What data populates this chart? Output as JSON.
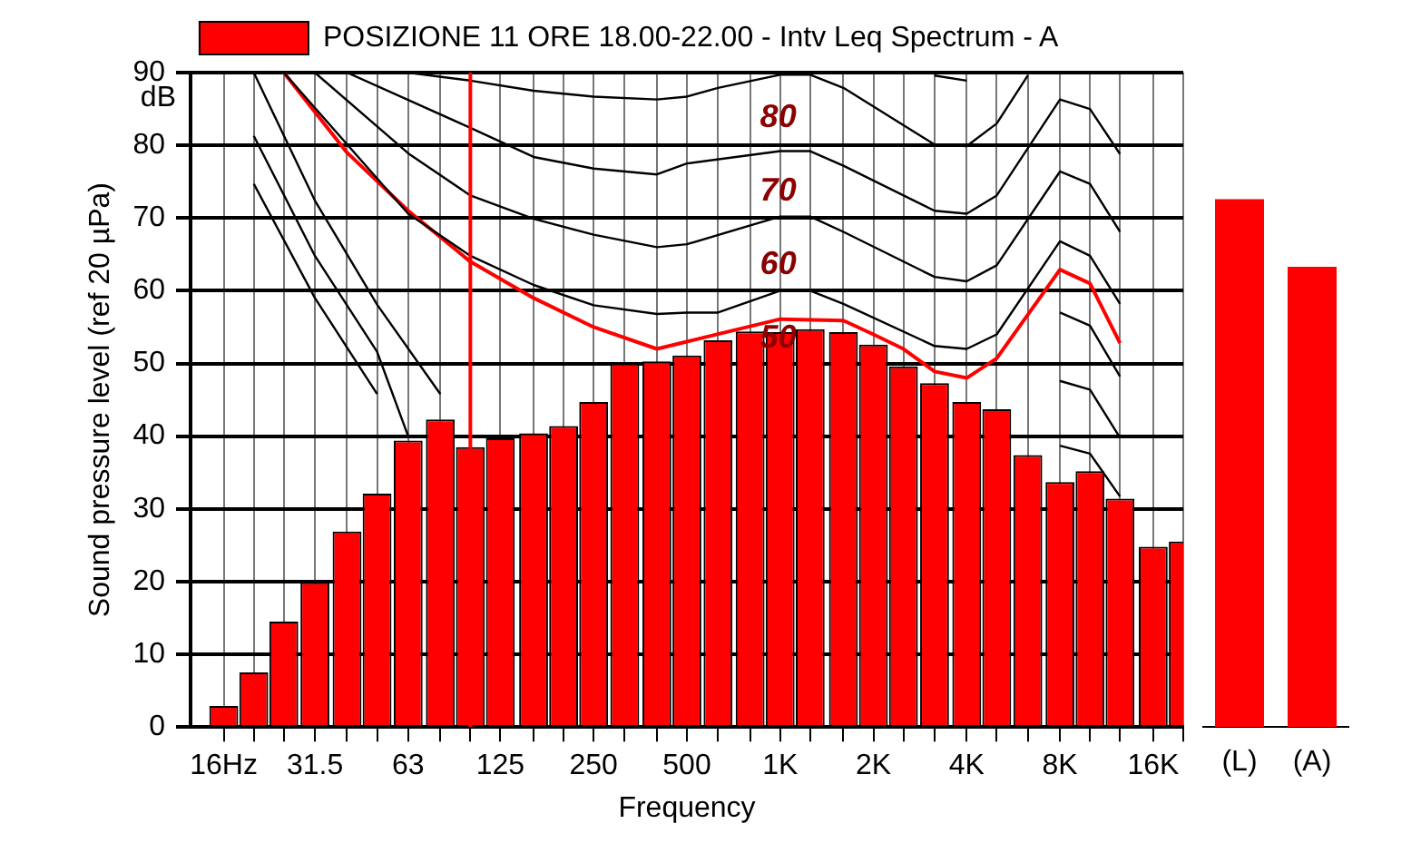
{
  "chart_data": [
    {
      "type": "bar",
      "xlabel": "Frequency",
      "ylabel": "Sound pressure level (ref 20 µPa)",
      "log": "x",
      "grid": true,
      "legend": "top",
      "marker": "none",
      "x": [
        16,
        20,
        25,
        31.5,
        40,
        50,
        63,
        80,
        100,
        125,
        160,
        200,
        250,
        315,
        400,
        500,
        630,
        800,
        1000,
        1250,
        1600,
        2000,
        2500,
        3150,
        4000,
        5000,
        6300,
        8000,
        10000,
        12500,
        16000,
        20000
      ],
      "xlim": [
        12.5,
        20000
      ],
      "xticks": [
        {
          "value": 16,
          "label": "16Hz"
        },
        {
          "value": 20,
          "label": null
        },
        {
          "value": 25,
          "label": null
        },
        {
          "value": 31.5,
          "label": "31.5"
        },
        {
          "value": 40,
          "label": null
        },
        {
          "value": 50,
          "label": null
        },
        {
          "value": 63,
          "label": "63"
        },
        {
          "value": 80,
          "label": null
        },
        {
          "value": 100,
          "label": null
        },
        {
          "value": 125,
          "label": "125"
        },
        {
          "value": 160,
          "label": null
        },
        {
          "value": 200,
          "label": null
        },
        {
          "value": 250,
          "label": "250"
        },
        {
          "value": 315,
          "label": null
        },
        {
          "value": 400,
          "label": null
        },
        {
          "value": 500,
          "label": "500"
        },
        {
          "value": 630,
          "label": null
        },
        {
          "value": 800,
          "label": null
        },
        {
          "value": 1000,
          "label": "1K"
        },
        {
          "value": 1250,
          "label": null
        },
        {
          "value": 1600,
          "label": null
        },
        {
          "value": 2000,
          "label": "2K"
        },
        {
          "value": 2500,
          "label": null
        },
        {
          "value": 3150,
          "label": null
        },
        {
          "value": 4000,
          "label": "4K"
        },
        {
          "value": 5000,
          "label": null
        },
        {
          "value": 6300,
          "label": null
        },
        {
          "value": 8000,
          "label": "8K"
        },
        {
          "value": 10000,
          "label": null
        },
        {
          "value": 12500,
          "label": null
        },
        {
          "value": 16000,
          "label": "16K"
        },
        {
          "value": 20000,
          "label": null
        }
      ],
      "ylim": [
        0,
        90
      ],
      "yticks": [
        0,
        10,
        20,
        30,
        40,
        50,
        60,
        70,
        80,
        90
      ],
      "ref_lines": [
        {
          "axis": "x",
          "value": 100,
          "color": "#ff0000"
        }
      ],
      "annotations": [
        "dB",
        "80",
        "70",
        "60",
        "50"
      ],
      "series": [
        {
          "name": "POSIZIONE 11 ORE 18.00-22.00 - Intv Leq Spectrum - A",
          "color": "#ff0000",
          "values": [
            2.9,
            7.5,
            14.5,
            19.9,
            26.9,
            32.1,
            39.4,
            42.3,
            38.5,
            39.7,
            40.4,
            41.4,
            44.7,
            50.0,
            50.3,
            51.1,
            53.2,
            54.4,
            54.3,
            54.7,
            54.3,
            52.6,
            49.6,
            47.3,
            44.7,
            43.7,
            37.4,
            33.7,
            35.2,
            31.4,
            24.8,
            25.5
          ]
        },
        {
          "type": "line",
          "color": "#000000",
          "x": [
            63,
            100,
            160,
            250,
            400,
            500,
            630,
            1000,
            1250,
            1600,
            3150,
            4000,
            5000,
            6300
          ],
          "values": [
            90,
            88.9,
            87.5,
            86.7,
            86.3,
            86.7,
            87.9,
            89.7,
            89.7,
            87.9,
            80.1,
            79.9,
            83.0,
            89.6
          ]
        },
        {
          "type": "line",
          "color": "#000000",
          "x": [
            3150,
            4000
          ],
          "values": [
            89.6,
            88.9
          ]
        },
        {
          "type": "line",
          "color": "#000000",
          "x": [
            40,
            100,
            160,
            250,
            400,
            500,
            1000,
            1250,
            1600,
            3150,
            4000,
            5000,
            8000,
            10000,
            12500
          ],
          "values": [
            90,
            82.4,
            78.4,
            76.8,
            76.0,
            77.5,
            79.2,
            79.2,
            77.2,
            71.0,
            70.6,
            73.1,
            86.3,
            85.0,
            78.8
          ]
        },
        {
          "type": "line",
          "color": "#000000",
          "x": [
            31.5,
            63,
            100,
            160,
            250,
            400,
            500,
            1000,
            1250,
            1600,
            3150,
            4000,
            5000,
            8000,
            10000,
            12500
          ],
          "values": [
            90,
            78.9,
            73.1,
            69.9,
            67.7,
            66.0,
            66.4,
            70.2,
            70.2,
            68.1,
            61.9,
            61.3,
            63.5,
            76.4,
            74.7,
            68.1
          ]
        },
        {
          "type": "line",
          "color": "#000000",
          "x": [
            25,
            63,
            100,
            160,
            250,
            400,
            500,
            630,
            1000,
            1250,
            1600,
            3150,
            4000,
            5000,
            8000,
            10000,
            12500
          ],
          "values": [
            90,
            70.6,
            64.8,
            60.8,
            58.0,
            56.8,
            57.0,
            57.0,
            60.0,
            60.0,
            58.2,
            52.4,
            52.0,
            54.0,
            66.8,
            64.8,
            58.2
          ]
        },
        {
          "type": "line",
          "color": "#000000",
          "x": [
            20,
            31.5,
            50,
            80,
            1000,
            8000,
            10000,
            12500
          ],
          "values": [
            90,
            72.4,
            58.1,
            45.8,
            null,
            57.0,
            55.2,
            48.2
          ]
        },
        {
          "type": "line",
          "color": "#000000",
          "x": [
            20,
            31.5,
            50,
            63,
            1000,
            8000,
            10000,
            12500
          ],
          "values": [
            81.3,
            64.8,
            51.6,
            40.0,
            null,
            47.6,
            46.4,
            39.8
          ]
        },
        {
          "type": "line",
          "color": "#000000",
          "x": [
            20,
            31.5,
            50,
            1000,
            8000,
            10000,
            12500
          ],
          "values": [
            74.7,
            59.0,
            45.8,
            null,
            38.7,
            37.6,
            31.7
          ]
        },
        {
          "type": "line",
          "color": "#ff0000",
          "x": [
            25,
            40,
            63,
            100,
            160,
            250,
            400,
            500,
            1000,
            1600,
            2000,
            2500,
            3150,
            4000,
            5000,
            8000,
            10000,
            12500
          ],
          "values": [
            90,
            79,
            71,
            64,
            59,
            55,
            52,
            53,
            56.1,
            55.9,
            54.0,
            52.0,
            48.9,
            48.0,
            50.7,
            62.9,
            61.0,
            52.8
          ]
        }
      ]
    },
    {
      "type": "bar",
      "categories": [
        "(L)",
        "(A)"
      ],
      "values": [
        72.6,
        63.3
      ],
      "color": "#ff0000",
      "ylim": [
        0,
        90
      ],
      "tick_labels": "x"
    }
  ]
}
